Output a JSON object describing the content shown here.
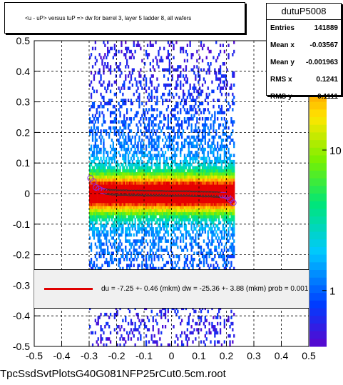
{
  "header": {
    "title": "<u - uP>       versus  tuP =>  dw for barrel 3, layer 5 ladder 8, all wafers"
  },
  "stats": {
    "name": "dutuP5008",
    "rows": [
      {
        "label": "Entries",
        "value": "141889"
      },
      {
        "label": "Mean x",
        "value": "-0.03567"
      },
      {
        "label": "Mean y",
        "value": "-0.001963"
      },
      {
        "label": "RMS x",
        "value": "0.1241"
      },
      {
        "label": "RMS y",
        "value": "0.1111"
      }
    ]
  },
  "fit": {
    "text": "du =   -7.25 +-  0.46 (mkm) dw =  -25.36 +-  3.88 (mkm) prob = 0.001",
    "line_color": "#e00000"
  },
  "footer": {
    "filename": "TpcSsdSvtPlotsG40G081NFP25rCut0.5cm.root"
  },
  "chart_data": {
    "type": "heatmap",
    "title": "<u - uP>       versus  tuP =>  dw for barrel 3, layer 5 ladder 8, all wafers",
    "xlim": [
      -0.5,
      0.5
    ],
    "ylim": [
      -0.5,
      0.5
    ],
    "x_ticks": [
      "-0.5",
      "-0.4",
      "-0.3",
      "-0.2",
      "-0.1",
      "0",
      "0.1",
      "0.2",
      "0.3",
      "0.4",
      "0.5"
    ],
    "y_ticks": [
      "-0.5",
      "-0.4",
      "-0.3",
      "-0.2",
      "-0.1",
      "0",
      "0.1",
      "0.2",
      "0.3",
      "0.4",
      "0.5"
    ],
    "grid": true,
    "color_scale": "log",
    "z_ticks": [
      {
        "label": "1",
        "value": 1
      },
      {
        "label": "10",
        "value": 10
      }
    ],
    "z_top_label_fragment": "0",
    "occupied_x_range": [
      -0.3,
      0.23
    ],
    "profile_points": {
      "x": [
        -0.295,
        -0.285,
        -0.275,
        -0.265,
        -0.255,
        -0.245,
        -0.235,
        -0.225,
        -0.215,
        -0.205,
        -0.195,
        -0.185,
        -0.175,
        -0.165,
        -0.155,
        -0.145,
        -0.135,
        -0.125,
        -0.115,
        -0.105,
        -0.095,
        -0.085,
        -0.075,
        -0.065,
        -0.055,
        -0.045,
        -0.035,
        -0.025,
        -0.015,
        -0.005,
        0.005,
        0.015,
        0.025,
        0.035,
        0.045,
        0.055,
        0.065,
        0.075,
        0.085,
        0.095,
        0.105,
        0.115,
        0.125,
        0.135,
        0.145,
        0.155,
        0.165,
        0.175,
        0.185,
        0.195,
        0.205,
        0.215,
        0.225
      ],
      "y": [
        0.05,
        0.04,
        0.02,
        0.015,
        0.01,
        0.008,
        0.006,
        0.005,
        0.004,
        0.004,
        0.003,
        0.003,
        0.003,
        0.003,
        0.002,
        0.002,
        0.002,
        0.002,
        0.002,
        0.002,
        0.001,
        0.001,
        0.001,
        0.001,
        0.001,
        0.001,
        0.001,
        0.0,
        0.0,
        0.0,
        0.0,
        0.0,
        0.0,
        0.0,
        0.0,
        0.0,
        0.0,
        -0.001,
        -0.001,
        -0.001,
        -0.001,
        -0.002,
        -0.002,
        -0.002,
        -0.002,
        -0.003,
        -0.003,
        -0.004,
        -0.005,
        -0.006,
        -0.01,
        -0.02,
        -0.03
      ]
    },
    "fit_line": {
      "x": [
        -0.29,
        0.225
      ],
      "y": [
        0.006,
        -0.0015
      ]
    }
  }
}
